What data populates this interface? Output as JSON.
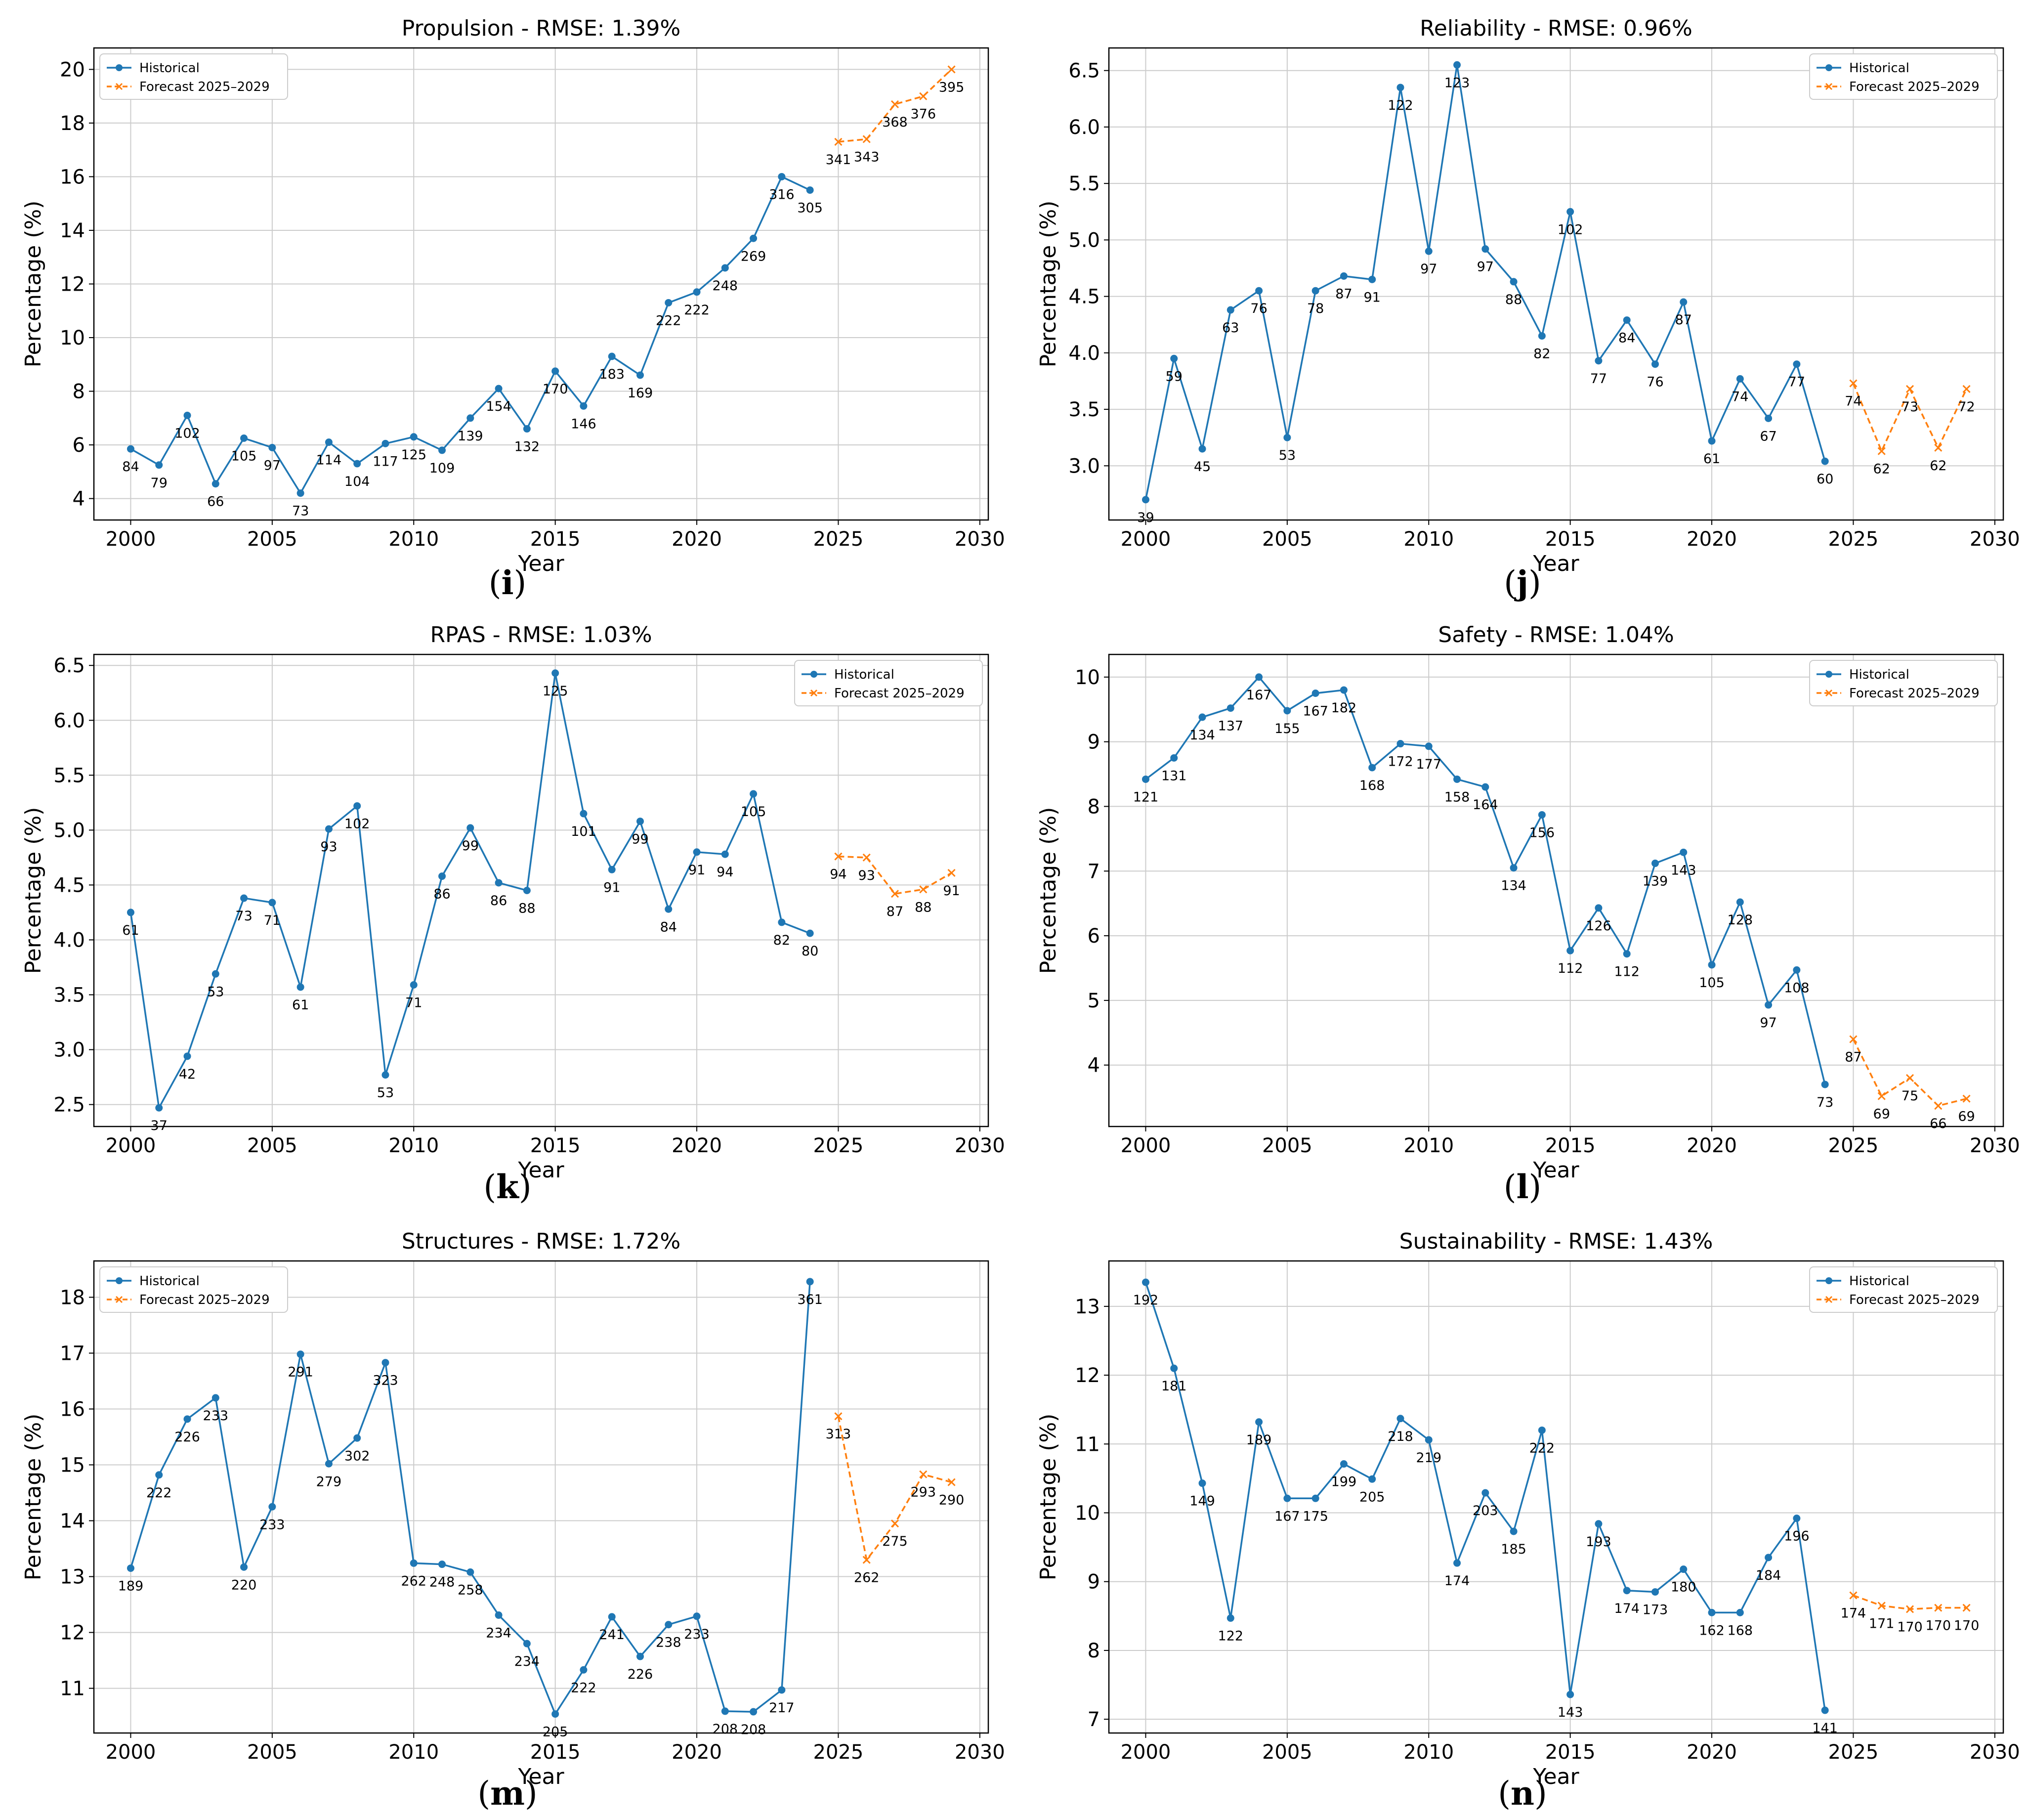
{
  "legend": {
    "historical": "Historical",
    "forecast": "Forecast 2025–2029"
  },
  "colors": {
    "historical": "#1f77b4",
    "forecast": "#ff7f0e",
    "grid": "#cccccc"
  },
  "chart_data": [
    {
      "type": "line",
      "panel": "i",
      "title": "Propulsion - RMSE: 1.39%",
      "xlabel": "Year",
      "ylabel": "Percentage (%)",
      "xlim": [
        1998.7,
        2030.3
      ],
      "ylim": [
        3.2,
        20.8
      ],
      "xticks": [
        2000,
        2005,
        2010,
        2015,
        2020,
        2025,
        2030
      ],
      "yticks": [
        4,
        6,
        8,
        10,
        12,
        14,
        16,
        18,
        20
      ],
      "grid": true,
      "legend_position": "upper-left",
      "series": [
        {
          "name": "Historical",
          "x": [
            2000,
            2001,
            2002,
            2003,
            2004,
            2005,
            2006,
            2007,
            2008,
            2009,
            2010,
            2011,
            2012,
            2013,
            2014,
            2015,
            2016,
            2017,
            2018,
            2019,
            2020,
            2021,
            2022,
            2023,
            2024
          ],
          "y": [
            5.85,
            5.25,
            7.1,
            4.55,
            6.25,
            5.9,
            4.2,
            6.1,
            5.3,
            6.05,
            6.3,
            5.8,
            7.0,
            8.1,
            6.6,
            8.75,
            7.45,
            9.3,
            8.6,
            11.3,
            11.7,
            12.6,
            13.7,
            16.0,
            15.5
          ],
          "labels": [
            "84",
            "79",
            "102",
            "66",
            "105",
            "97",
            "73",
            "114",
            "104",
            "117",
            "125",
            "109",
            "139",
            "154",
            "132",
            "170",
            "146",
            "183",
            "169",
            "222",
            "222",
            "248",
            "269",
            "316",
            "305"
          ]
        },
        {
          "name": "Forecast 2025–2029",
          "x": [
            2025,
            2026,
            2027,
            2028,
            2029
          ],
          "y": [
            17.3,
            17.4,
            18.7,
            19.0,
            20.0
          ],
          "labels": [
            "341",
            "343",
            "368",
            "376",
            "395"
          ]
        }
      ]
    },
    {
      "type": "line",
      "panel": "j",
      "title": "Reliability - RMSE: 0.96%",
      "xlabel": "Year",
      "ylabel": "Percentage (%)",
      "xlim": [
        1998.7,
        2030.3
      ],
      "ylim": [
        2.52,
        6.7
      ],
      "xticks": [
        2000,
        2005,
        2010,
        2015,
        2020,
        2025,
        2030
      ],
      "yticks": [
        3.0,
        3.5,
        4.0,
        4.5,
        5.0,
        5.5,
        6.0,
        6.5
      ],
      "grid": true,
      "legend_position": "upper-right",
      "series": [
        {
          "name": "Historical",
          "x": [
            2000,
            2001,
            2002,
            2003,
            2004,
            2005,
            2006,
            2007,
            2008,
            2009,
            2010,
            2011,
            2012,
            2013,
            2014,
            2015,
            2016,
            2017,
            2018,
            2019,
            2020,
            2021,
            2022,
            2023,
            2024
          ],
          "y": [
            2.7,
            3.95,
            3.15,
            4.38,
            4.55,
            3.25,
            4.55,
            4.68,
            4.65,
            6.35,
            4.9,
            6.55,
            4.92,
            4.63,
            4.15,
            5.25,
            3.93,
            4.29,
            3.9,
            4.45,
            3.22,
            3.77,
            3.42,
            3.9,
            3.04
          ],
          "labels": [
            "39",
            "59",
            "45",
            "63",
            "76",
            "53",
            "78",
            "87",
            "91",
            "122",
            "97",
            "123",
            "97",
            "88",
            "82",
            "102",
            "77",
            "84",
            "76",
            "87",
            "61",
            "74",
            "67",
            "77",
            "60"
          ]
        },
        {
          "name": "Forecast 2025–2029",
          "x": [
            2025,
            2026,
            2027,
            2028,
            2029
          ],
          "y": [
            3.73,
            3.13,
            3.68,
            3.16,
            3.68
          ],
          "labels": [
            "74",
            "62",
            "73",
            "62",
            "72"
          ]
        }
      ]
    },
    {
      "type": "line",
      "panel": "k",
      "title": "RPAS - RMSE: 1.03%",
      "xlabel": "Year",
      "ylabel": "Percentage (%)",
      "xlim": [
        1998.7,
        2030.3
      ],
      "ylim": [
        2.3,
        6.6
      ],
      "xticks": [
        2000,
        2005,
        2010,
        2015,
        2020,
        2025,
        2030
      ],
      "yticks": [
        2.5,
        3.0,
        3.5,
        4.0,
        4.5,
        5.0,
        5.5,
        6.0,
        6.5
      ],
      "grid": true,
      "legend_position": "upper-right",
      "series": [
        {
          "name": "Historical",
          "x": [
            2000,
            2001,
            2002,
            2003,
            2004,
            2005,
            2006,
            2007,
            2008,
            2009,
            2010,
            2011,
            2012,
            2013,
            2014,
            2015,
            2016,
            2017,
            2018,
            2019,
            2020,
            2021,
            2022,
            2023,
            2024
          ],
          "y": [
            4.25,
            2.47,
            2.94,
            3.69,
            4.38,
            4.34,
            3.57,
            5.01,
            5.22,
            2.77,
            3.59,
            4.58,
            5.02,
            4.52,
            4.45,
            6.43,
            5.15,
            4.64,
            5.08,
            4.28,
            4.8,
            4.78,
            5.33,
            4.16,
            4.06
          ],
          "labels": [
            "61",
            "37",
            "42",
            "53",
            "73",
            "71",
            "61",
            "93",
            "102",
            "53",
            "71",
            "86",
            "99",
            "86",
            "88",
            "125",
            "101",
            "91",
            "99",
            "84",
            "91",
            "94",
            "105",
            "82",
            "80"
          ]
        },
        {
          "name": "Forecast 2025–2029",
          "x": [
            2025,
            2026,
            2027,
            2028,
            2029
          ],
          "y": [
            4.76,
            4.75,
            4.42,
            4.46,
            4.61
          ],
          "labels": [
            "94",
            "93",
            "87",
            "88",
            "91"
          ]
        }
      ]
    },
    {
      "type": "line",
      "panel": "l",
      "title": "Safety - RMSE: 1.04%",
      "xlabel": "Year",
      "ylabel": "Percentage (%)",
      "xlim": [
        1998.7,
        2030.3
      ],
      "ylim": [
        3.05,
        10.35
      ],
      "xticks": [
        2000,
        2005,
        2010,
        2015,
        2020,
        2025,
        2030
      ],
      "yticks": [
        4,
        5,
        6,
        7,
        8,
        9,
        10
      ],
      "grid": true,
      "legend_position": "upper-right",
      "series": [
        {
          "name": "Historical",
          "x": [
            2000,
            2001,
            2002,
            2003,
            2004,
            2005,
            2006,
            2007,
            2008,
            2009,
            2010,
            2011,
            2012,
            2013,
            2014,
            2015,
            2016,
            2017,
            2018,
            2019,
            2020,
            2021,
            2022,
            2023,
            2024
          ],
          "y": [
            8.42,
            8.75,
            9.38,
            9.52,
            10.0,
            9.48,
            9.75,
            9.8,
            8.6,
            8.97,
            8.93,
            8.42,
            8.3,
            7.05,
            7.87,
            5.77,
            6.43,
            5.72,
            7.12,
            7.29,
            5.55,
            6.52,
            4.93,
            5.47,
            3.7
          ],
          "labels": [
            "121",
            "131",
            "134",
            "137",
            "167",
            "155",
            "167",
            "182",
            "168",
            "172",
            "177",
            "158",
            "164",
            "134",
            "156",
            "112",
            "126",
            "112",
            "139",
            "143",
            "105",
            "128",
            "97",
            "108",
            "73"
          ]
        },
        {
          "name": "Forecast 2025–2029",
          "x": [
            2025,
            2026,
            2027,
            2028,
            2029
          ],
          "y": [
            4.4,
            3.52,
            3.8,
            3.37,
            3.48
          ],
          "labels": [
            "87",
            "69",
            "75",
            "66",
            "69"
          ]
        }
      ]
    },
    {
      "type": "line",
      "panel": "m",
      "title": "Structures - RMSE: 1.72%",
      "xlabel": "Year",
      "ylabel": "Percentage (%)",
      "xlim": [
        1998.7,
        2030.3
      ],
      "ylim": [
        10.2,
        18.65
      ],
      "xticks": [
        2000,
        2005,
        2010,
        2015,
        2020,
        2025,
        2030
      ],
      "yticks": [
        11,
        12,
        13,
        14,
        15,
        16,
        17,
        18
      ],
      "grid": true,
      "legend_position": "upper-left",
      "series": [
        {
          "name": "Historical",
          "x": [
            2000,
            2001,
            2002,
            2003,
            2004,
            2005,
            2006,
            2007,
            2008,
            2009,
            2010,
            2011,
            2012,
            2013,
            2014,
            2015,
            2016,
            2017,
            2018,
            2019,
            2020,
            2021,
            2022,
            2023,
            2024
          ],
          "y": [
            13.15,
            14.82,
            15.82,
            16.2,
            13.17,
            14.25,
            16.98,
            15.02,
            15.48,
            16.83,
            13.24,
            13.22,
            13.08,
            12.31,
            11.8,
            10.54,
            11.33,
            12.28,
            11.57,
            12.14,
            12.29,
            10.59,
            10.58,
            10.97,
            18.28
          ],
          "labels": [
            "189",
            "222",
            "226",
            "233",
            "220",
            "233",
            "291",
            "279",
            "302",
            "323",
            "262",
            "248",
            "258",
            "234",
            "234",
            "205",
            "222",
            "241",
            "226",
            "238",
            "233",
            "208",
            "208",
            "217",
            "361"
          ]
        },
        {
          "name": "Forecast 2025–2029",
          "x": [
            2025,
            2026,
            2027,
            2028,
            2029
          ],
          "y": [
            15.87,
            13.3,
            13.95,
            14.83,
            14.69
          ],
          "labels": [
            "313",
            "262",
            "275",
            "293",
            "290"
          ]
        }
      ]
    },
    {
      "type": "line",
      "panel": "n",
      "title": "Sustainability - RMSE: 1.43%",
      "xlabel": "Year",
      "ylabel": "Percentage (%)",
      "xlim": [
        1998.7,
        2030.3
      ],
      "ylim": [
        6.8,
        13.66
      ],
      "xticks": [
        2000,
        2005,
        2010,
        2015,
        2020,
        2025,
        2030
      ],
      "yticks": [
        7,
        8,
        9,
        10,
        11,
        12,
        13
      ],
      "grid": true,
      "legend_position": "upper-right",
      "series": [
        {
          "name": "Historical",
          "x": [
            2000,
            2001,
            2002,
            2003,
            2004,
            2005,
            2006,
            2007,
            2008,
            2009,
            2010,
            2011,
            2012,
            2013,
            2014,
            2015,
            2016,
            2017,
            2018,
            2019,
            2020,
            2021,
            2022,
            2023,
            2024
          ],
          "y": [
            13.35,
            12.1,
            10.43,
            8.47,
            11.32,
            10.21,
            10.21,
            10.71,
            10.49,
            11.37,
            11.06,
            9.27,
            10.29,
            9.73,
            11.2,
            7.36,
            9.84,
            8.87,
            8.85,
            9.18,
            8.55,
            8.55,
            9.35,
            9.92,
            7.13
          ],
          "labels": [
            "192",
            "181",
            "149",
            "122",
            "189",
            "167",
            "175",
            "199",
            "205",
            "218",
            "219",
            "174",
            "203",
            "185",
            "222",
            "143",
            "193",
            "174",
            "173",
            "180",
            "162",
            "168",
            "184",
            "196",
            "141"
          ]
        },
        {
          "name": "Forecast 2025–2029",
          "x": [
            2025,
            2026,
            2027,
            2028,
            2029
          ],
          "y": [
            8.8,
            8.65,
            8.6,
            8.62,
            8.62
          ],
          "labels": [
            "174",
            "171",
            "170",
            "170",
            "170"
          ]
        }
      ]
    }
  ],
  "subfigure_labels": [
    "(i)",
    "(j)",
    "(k)",
    "(l)",
    "(m)",
    "(n)"
  ]
}
